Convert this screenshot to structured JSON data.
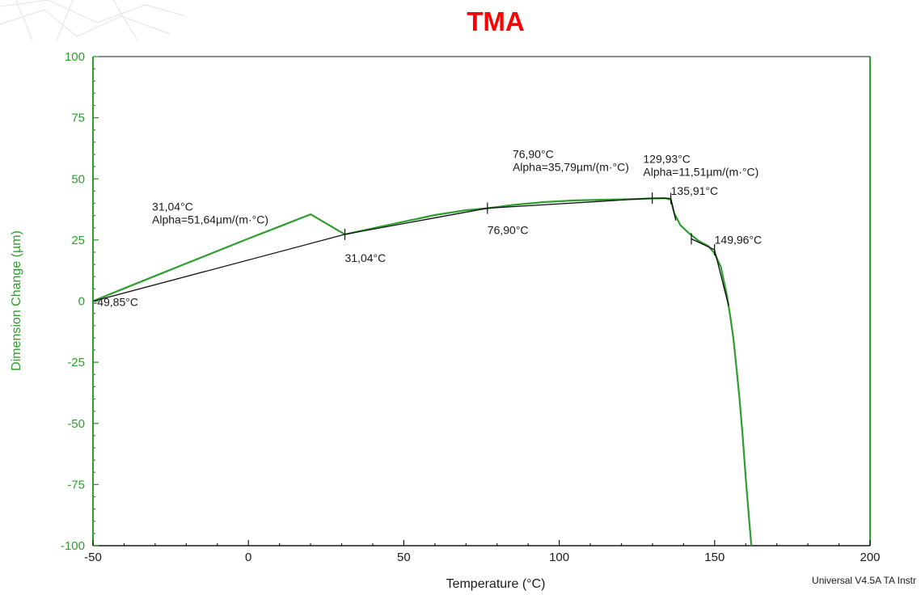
{
  "chart_data": {
    "type": "line",
    "title": "TMA",
    "xlabel": "Temperature (°C)",
    "ylabel": "Dimension Change (µm)",
    "xlim": [
      -50,
      200
    ],
    "ylim": [
      -100,
      100
    ],
    "x_ticks": [
      "-50",
      "0",
      "50",
      "100",
      "150",
      "200"
    ],
    "y_ticks": [
      "100",
      "75",
      "50",
      "25",
      "0",
      "-25",
      "-50",
      "-75",
      "-100"
    ],
    "footer": "Universal V4.5A TA Instr",
    "colors": {
      "title": "#ff0000",
      "curve": "#2e9e2e",
      "fit": "#111111",
      "axis_left": "#2e9e2e",
      "ylabel": "#2e9e2e",
      "ticks_x": "#1a1a1a"
    },
    "series": [
      {
        "x": [
          -50,
          -40,
          -30,
          -20,
          -10,
          0,
          10,
          20,
          31.04,
          40,
          50,
          60,
          70,
          76.9,
          85,
          95,
          105,
          115,
          125,
          130,
          134,
          135.9,
          137,
          139,
          142,
          145,
          148,
          150,
          152,
          154,
          155,
          156,
          157,
          158,
          159,
          160,
          161,
          161.8
        ],
        "y": [
          0,
          5.2,
          10.3,
          15.4,
          20.5,
          25.6,
          30.5,
          35.5,
          27.3,
          29.8,
          32.5,
          35.2,
          37.2,
          38.0,
          39.3,
          40.5,
          41.2,
          41.5,
          41.8,
          42.0,
          42.1,
          41.5,
          36.0,
          31.0,
          27.5,
          24.5,
          22.5,
          19.5,
          14.0,
          2.0,
          -6.0,
          -15.0,
          -27.0,
          -40.0,
          -55.0,
          -72.0,
          -88.0,
          -100
        ]
      }
    ],
    "fit_segments": [
      {
        "x": [
          -49.85,
          31.04
        ],
        "y": [
          0,
          27.3
        ]
      },
      {
        "x": [
          31.04,
          76.9
        ],
        "y": [
          27.3,
          38.0
        ]
      },
      {
        "x": [
          76.9,
          129.93
        ],
        "y": [
          38.0,
          42.1
        ]
      },
      {
        "x": [
          129.93,
          135.91
        ],
        "y": [
          42.1,
          42.0
        ]
      },
      {
        "x": [
          135.91,
          137.5
        ],
        "y": [
          42.0,
          33.0
        ]
      },
      {
        "x": [
          142.5,
          149.96
        ],
        "y": [
          25.5,
          21.0
        ]
      },
      {
        "x": [
          149.96,
          154.5
        ],
        "y": [
          21.0,
          -2.0
        ]
      }
    ],
    "markers": [
      {
        "x": 31.04,
        "y": 27.3
      },
      {
        "x": 76.9,
        "y": 38.0
      },
      {
        "x": 129.93,
        "y": 42.1
      },
      {
        "x": 135.91,
        "y": 42.0
      },
      {
        "x": 142.5,
        "y": 25.5
      },
      {
        "x": 149.96,
        "y": 21.0
      }
    ],
    "annotations": [
      {
        "x": -49.85,
        "y": -2.0,
        "lines": [
          "-49,85°C"
        ]
      },
      {
        "x": 31.04,
        "y": 16.0,
        "lines": [
          "31,04°C"
        ]
      },
      {
        "x": 76.9,
        "y": 27.5,
        "lines": [
          "76,90°C"
        ]
      },
      {
        "x": 135.91,
        "y": 43.5,
        "lines": [
          "135,91°C"
        ]
      },
      {
        "x": 149.96,
        "y": 23.5,
        "lines": [
          "149,96°C"
        ]
      },
      {
        "x": -31.0,
        "y": 37.0,
        "lines": [
          "31,04°C",
          "Alpha=51,64µm/(m·°C)"
        ]
      },
      {
        "x": 85.0,
        "y": 58.5,
        "lines": [
          "76,90°C",
          "Alpha=35,79µm/(m·°C)"
        ]
      },
      {
        "x": 127.0,
        "y": 56.5,
        "lines": [
          "129,93°C",
          "Alpha=11,51µm/(m·°C)"
        ]
      }
    ]
  }
}
